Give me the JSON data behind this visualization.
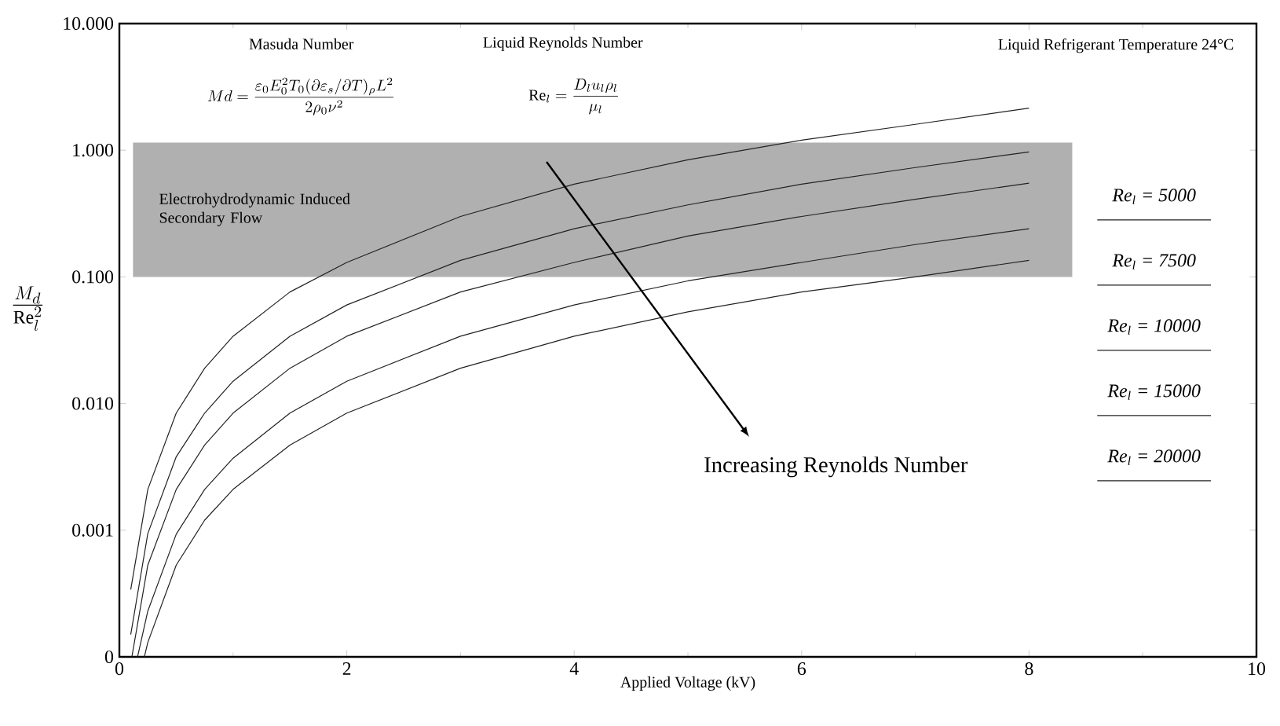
{
  "chart_data": {
    "type": "line",
    "xlabel": "Applied Voltage (kV)",
    "ylabel": "\\frac{M_d}{\\mathrm{Re}_l^2}",
    "annotations": [
      "Masuda Number",
      "Md = \\frac{\\varepsilon_0 E_0^2 T_0 (\\partial\\varepsilon_s/\\partial T)_\\rho L^2}{2\\rho_0 \\nu^2}",
      "Liquid Reynolds Number",
      "\\mathrm{Re}_l = \\frac{D_l u_l \\rho_l}{\\mu_l}",
      "Liquid Refrigerant Temperature 24°C",
      "Increasing Reynolds Number"
    ],
    "series": [
      {
        "name": "Re$_{l}$ = 5000",
        "color": "#222222",
        "x": [
          0.1,
          0.25,
          0.5,
          0.75,
          1,
          1.5,
          2,
          3,
          4,
          5,
          6,
          7,
          8
        ],
        "values": [
          0.00034,
          0.0021,
          0.0084,
          0.019,
          0.034,
          0.076,
          0.13,
          0.3,
          0.54,
          0.84,
          1.2,
          1.6,
          2.15
        ]
      },
      {
        "name": "Re$_{l}$ = 7500",
        "color": "#222222",
        "x": [
          0.1,
          0.25,
          0.5,
          0.75,
          1,
          1.5,
          2,
          3,
          4,
          5,
          6,
          7,
          8
        ],
        "values": [
          0.00015,
          0.00094,
          0.0038,
          0.0084,
          0.015,
          0.034,
          0.06,
          0.135,
          0.24,
          0.37,
          0.54,
          0.73,
          0.97
        ]
      },
      {
        "name": "Re$_{l}$ = 10000",
        "color": "#222222",
        "x": [
          0.11,
          0.25,
          0.5,
          0.75,
          1,
          1.5,
          2,
          3,
          4,
          5,
          6,
          7,
          8
        ],
        "values": [
          0.0001,
          0.00053,
          0.0021,
          0.0047,
          0.0084,
          0.019,
          0.034,
          0.076,
          0.13,
          0.21,
          0.3,
          0.41,
          0.55
        ]
      },
      {
        "name": "Re$_{l}$ = 15000",
        "color": "#222222",
        "x": [
          0.16,
          0.25,
          0.5,
          0.75,
          1,
          1.5,
          2,
          3,
          4,
          5,
          6,
          7,
          8
        ],
        "values": [
          0.0001,
          0.00023,
          0.00093,
          0.0021,
          0.0037,
          0.0084,
          0.015,
          0.034,
          0.06,
          0.093,
          0.13,
          0.18,
          0.24
        ]
      },
      {
        "name": "Re$_{l}$ = 20000",
        "color": "#222222",
        "x": [
          0.22,
          0.25,
          0.5,
          0.75,
          1,
          1.5,
          2,
          3,
          4,
          5,
          6,
          7,
          8
        ],
        "values": [
          0.0001,
          0.00013,
          0.00053,
          0.0012,
          0.0021,
          0.0047,
          0.0084,
          0.019,
          0.034,
          0.053,
          0.076,
          0.1,
          0.135
        ]
      }
    ],
    "bands": [
      {
        "axis": "y",
        "from": 0.1,
        "to": 1.15,
        "label": "Electrohydrodynamic Induced Secondary Flow",
        "color": "#b0b0b0"
      }
    ],
    "log": "y",
    "xlim": [
      0,
      10
    ],
    "ylim": [
      0.0001,
      10
    ],
    "xticks": [
      0,
      2,
      4,
      6,
      8,
      10
    ],
    "yticks": [
      {
        "value": 0.0001,
        "label": "0"
      },
      0.001,
      {
        "value": 0.01,
        "label": "0.010"
      },
      {
        "value": 0.1,
        "label": "0.100"
      },
      {
        "value": 1,
        "label": "1.000"
      },
      {
        "value": 10,
        "label": "10.000"
      }
    ],
    "grid": false,
    "legend": "right",
    "line_style": "solid",
    "marker": "none"
  }
}
